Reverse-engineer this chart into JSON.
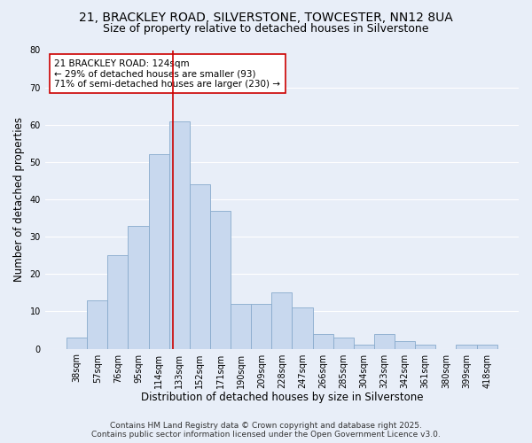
{
  "title_line1": "21, BRACKLEY ROAD, SILVERSTONE, TOWCESTER, NN12 8UA",
  "title_line2": "Size of property relative to detached houses in Silverstone",
  "xlabel": "Distribution of detached houses by size in Silverstone",
  "ylabel": "Number of detached properties",
  "categories": [
    "38sqm",
    "57sqm",
    "76sqm",
    "95sqm",
    "114sqm",
    "133sqm",
    "152sqm",
    "171sqm",
    "190sqm",
    "209sqm",
    "228sqm",
    "247sqm",
    "266sqm",
    "285sqm",
    "304sqm",
    "323sqm",
    "342sqm",
    "361sqm",
    "380sqm",
    "399sqm",
    "418sqm"
  ],
  "values": [
    3,
    13,
    25,
    33,
    52,
    61,
    44,
    37,
    12,
    12,
    15,
    11,
    4,
    3,
    1,
    4,
    2,
    1,
    0,
    1,
    1
  ],
  "bar_color": "#c8d8ee",
  "bar_edge_color": "#88aacc",
  "bar_width": 1.0,
  "vline_x": 4.68,
  "vline_color": "#cc0000",
  "annotation_line1": "21 BRACKLEY ROAD: 124sqm",
  "annotation_line2": "← 29% of detached houses are smaller (93)",
  "annotation_line3": "71% of semi-detached houses are larger (230) →",
  "ylim": [
    0,
    80
  ],
  "yticks": [
    0,
    10,
    20,
    30,
    40,
    50,
    60,
    70,
    80
  ],
  "bg_color": "#e8eef8",
  "plot_bg_color": "#e8eef8",
  "grid_color": "#ffffff",
  "footer_line1": "Contains HM Land Registry data © Crown copyright and database right 2025.",
  "footer_line2": "Contains public sector information licensed under the Open Government Licence v3.0.",
  "title_fontsize": 10,
  "subtitle_fontsize": 9,
  "tick_fontsize": 7,
  "ylabel_fontsize": 8.5,
  "xlabel_fontsize": 8.5,
  "annotation_fontsize": 7.5,
  "footer_fontsize": 6.5
}
